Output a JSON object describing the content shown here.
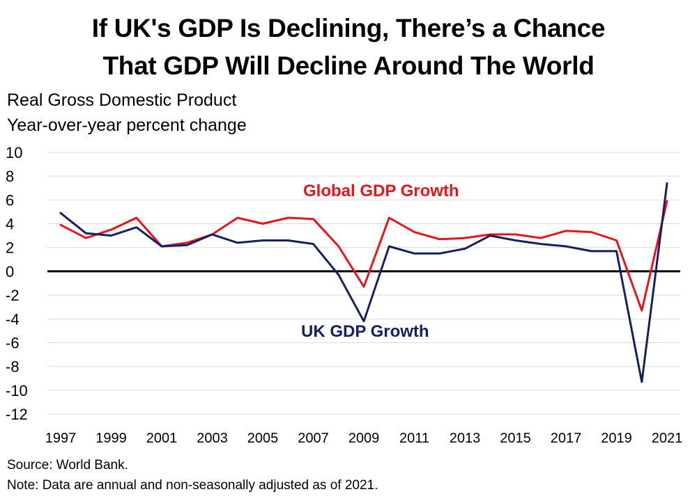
{
  "title": {
    "line1": "If UK's GDP Is Declining, There’s a Chance",
    "line2": "That GDP Will Decline Around The World"
  },
  "subtitle": {
    "line1": "Real Gross Domestic Product",
    "line2": "Year-over-year percent change"
  },
  "footer": {
    "source": "Source: World Bank.",
    "note": "Note: Data are annual and non-seasonally adjusted as of 2021."
  },
  "colors": {
    "global": "#e8141c",
    "uk": "#14215c",
    "grid": "#d9d9d9",
    "zero_line": "#000000"
  },
  "chart_data": {
    "type": "line",
    "title": "If UK's GDP Is Declining, There’s a Chance That GDP Will Decline Around The World",
    "ylabel": "Real Gross Domestic Product Year-over-year percent change",
    "x": [
      1997,
      1998,
      1999,
      2000,
      2001,
      2002,
      2003,
      2004,
      2005,
      2006,
      2007,
      2008,
      2009,
      2010,
      2011,
      2012,
      2013,
      2014,
      2015,
      2016,
      2017,
      2018,
      2019,
      2020,
      2021
    ],
    "xticks": [
      "1997",
      "1999",
      "2001",
      "2003",
      "2005",
      "2007",
      "2009",
      "2011",
      "2013",
      "2015",
      "2017",
      "2019",
      "2021"
    ],
    "yticks": [
      10,
      8,
      6,
      4,
      2,
      0,
      -2,
      -4,
      -6,
      -8,
      -10,
      -12
    ],
    "ylim": [
      -12,
      10
    ],
    "grid": true,
    "series": [
      {
        "name": "Global GDP Growth",
        "values": [
          3.9,
          2.8,
          3.5,
          4.5,
          2.1,
          2.4,
          3.1,
          4.5,
          4.0,
          4.5,
          4.4,
          2.1,
          -1.3,
          4.5,
          3.3,
          2.7,
          2.8,
          3.1,
          3.1,
          2.8,
          3.4,
          3.3,
          2.6,
          -3.3,
          5.9
        ]
      },
      {
        "name": "UK GDP Growth",
        "values": [
          4.9,
          3.2,
          3.0,
          3.7,
          2.1,
          2.2,
          3.1,
          2.4,
          2.6,
          2.6,
          2.3,
          -0.3,
          -4.2,
          2.1,
          1.5,
          1.5,
          1.9,
          3.0,
          2.6,
          2.3,
          2.1,
          1.7,
          1.7,
          -9.3,
          7.4
        ]
      }
    ]
  }
}
